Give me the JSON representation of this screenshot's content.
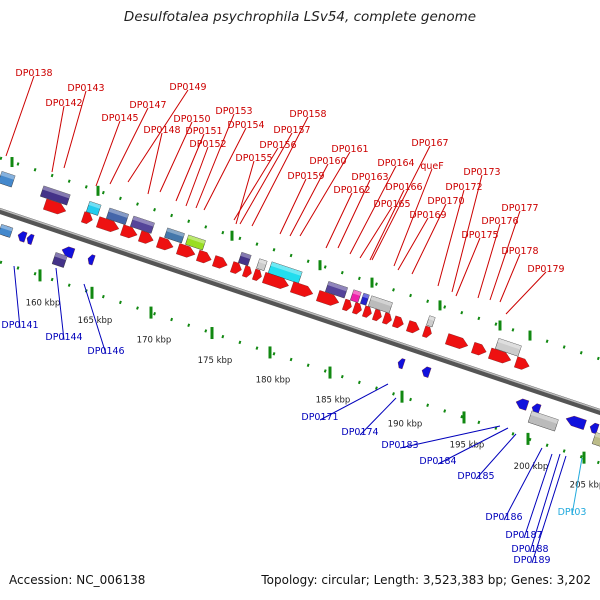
{
  "title": "Desulfotalea psychrophila LSv54, complete genome",
  "footer": {
    "accession": "Accession: NC_006138",
    "summary": "Topology: circular; Length: 3,523,383 bp; Genes: 3,202"
  },
  "colors": {
    "forward_label": "#cc0000",
    "reverse_label": "#0000bb",
    "trna_label": "#22aadd",
    "forward_gene": "#ee1111",
    "reverse_gene": "#1111dd",
    "tick": "#118811",
    "axis": "#777777",
    "scale_label": "#222222"
  },
  "scale_ticks": [
    "160 kbp",
    "165 kbp",
    "170 kbp",
    "175 kbp",
    "180 kbp",
    "185 kbp",
    "190 kbp",
    "195 kbp",
    "200 kbp",
    "205 kbp"
  ],
  "forward_labels": [
    "DP0138",
    "DP0143",
    "DP0142",
    "DP0149",
    "DP0147",
    "DP0145",
    "DP0150",
    "DP0148",
    "DP0151",
    "DP0153",
    "DP0154",
    "DP0158",
    "DP0152",
    "DP0157",
    "DP0156",
    "DP0155",
    "DP0161",
    "DP0160",
    "DP0167",
    "DP0159",
    "DP0164",
    "DP0163",
    "queF",
    "DP0162",
    "DP0173",
    "DP0166",
    "DP0172",
    "DP0165",
    "DP0170",
    "DP0169",
    "DP0177",
    "DP0176",
    "DP0175",
    "DP0178",
    "DP0179"
  ],
  "reverse_labels": [
    "DP0141",
    "DP0144",
    "DP0146",
    "DP0171",
    "DP0174",
    "DP0183",
    "DP0184",
    "DP0185",
    "DP0186",
    "DP0187",
    "DP0188",
    "DP0189"
  ],
  "trna_labels": [
    "DPt03"
  ]
}
